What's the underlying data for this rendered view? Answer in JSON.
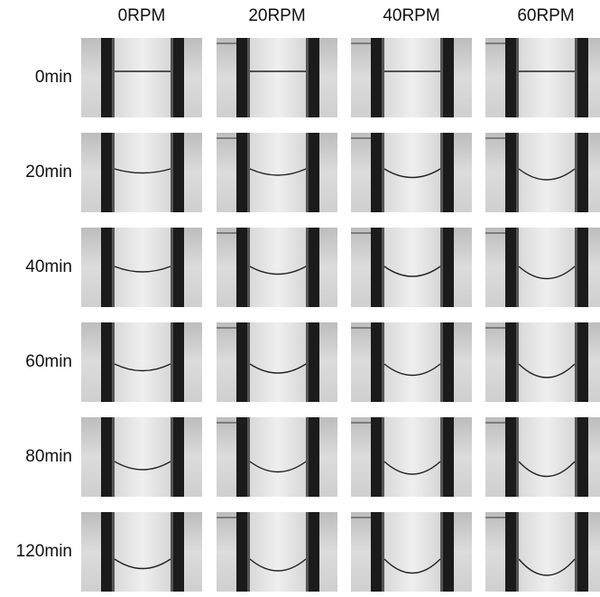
{
  "columns": [
    "0RPM",
    "20RPM",
    "40RPM",
    "60RPM"
  ],
  "rows": [
    "0min",
    "20min",
    "40min",
    "60min",
    "80min",
    "120min"
  ]
}
